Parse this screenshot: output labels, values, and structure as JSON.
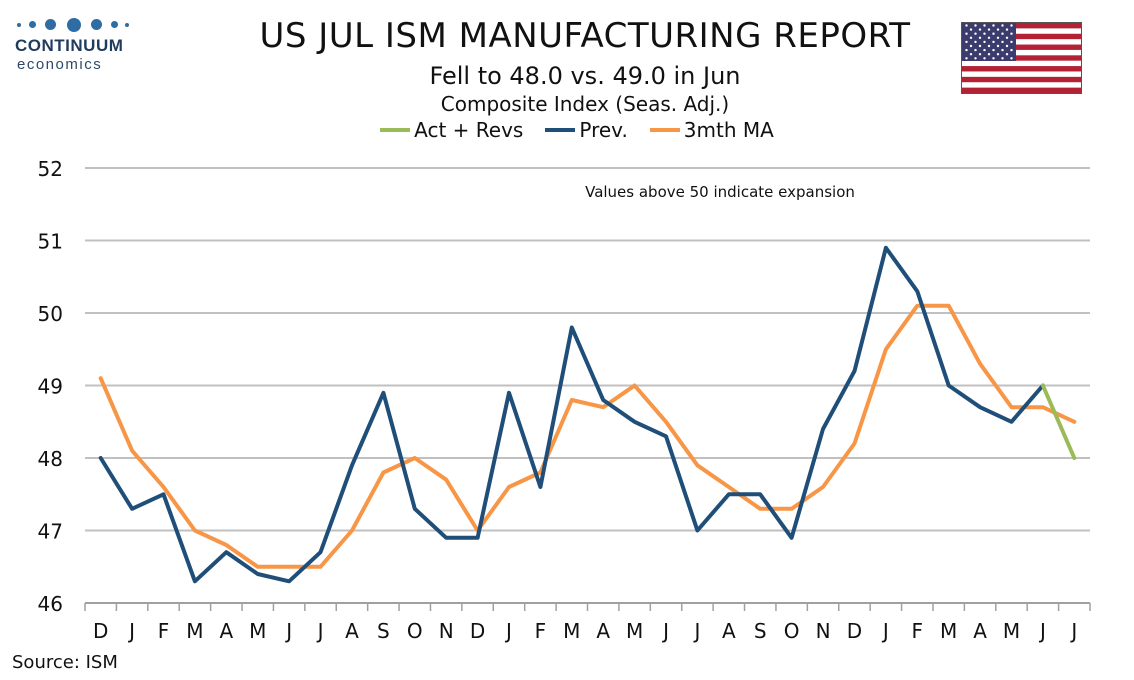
{
  "header": {
    "logo_text": "CONTINUUM",
    "logo_subtext": "economics",
    "title": "US JUL ISM MANUFACTURING REPORT",
    "subtitle": "Fell to 48.0 vs. 49.0 in Jun",
    "subtitle2": "Composite Index (Seas. Adj.)",
    "flag_icon": "us-flag-icon"
  },
  "footer": {
    "source": "Source: ISM"
  },
  "colors": {
    "act": "#9bbb59",
    "prev": "#1f4e79",
    "ma": "#f79646",
    "grid": "#c0c0c0"
  },
  "chart_data": {
    "type": "line",
    "annotation": "Values above 50 indicate expansion",
    "categories": [
      "D",
      "J",
      "F",
      "M",
      "A",
      "M",
      "J",
      "J",
      "A",
      "S",
      "O",
      "N",
      "D",
      "J",
      "F",
      "M",
      "A",
      "M",
      "J",
      "J",
      "A",
      "S",
      "O",
      "N",
      "D",
      "J",
      "F",
      "M",
      "A",
      "M",
      "J",
      "J"
    ],
    "ylim": [
      46,
      52
    ],
    "yticks": [
      46,
      47,
      48,
      49,
      50,
      51,
      52
    ],
    "grid": true,
    "legend_position": "top-center",
    "series": [
      {
        "name": "Act + Revs",
        "color": "#9bbb59",
        "values": [
          null,
          null,
          null,
          null,
          null,
          null,
          null,
          null,
          null,
          null,
          null,
          null,
          null,
          null,
          null,
          null,
          null,
          null,
          null,
          null,
          null,
          null,
          null,
          null,
          null,
          null,
          null,
          null,
          null,
          null,
          49.0,
          48.0
        ]
      },
      {
        "name": "Prev.",
        "color": "#1f4e79",
        "values": [
          48.0,
          47.3,
          47.5,
          46.3,
          46.7,
          46.4,
          46.3,
          46.7,
          47.9,
          48.9,
          47.3,
          46.9,
          46.9,
          48.9,
          47.6,
          49.8,
          48.8,
          48.5,
          48.3,
          47.0,
          47.5,
          47.5,
          46.9,
          48.4,
          49.2,
          50.9,
          50.3,
          49.0,
          48.7,
          48.5,
          49.0,
          null
        ]
      },
      {
        "name": "3mth MA",
        "color": "#f79646",
        "values": [
          49.1,
          48.1,
          47.6,
          47.0,
          46.8,
          46.5,
          46.5,
          46.5,
          47.0,
          47.8,
          48.0,
          47.7,
          47.0,
          47.6,
          47.8,
          48.8,
          48.7,
          49.0,
          48.5,
          47.9,
          47.6,
          47.3,
          47.3,
          47.6,
          48.2,
          49.5,
          50.1,
          50.1,
          49.3,
          48.7,
          48.7,
          48.5
        ]
      }
    ]
  }
}
